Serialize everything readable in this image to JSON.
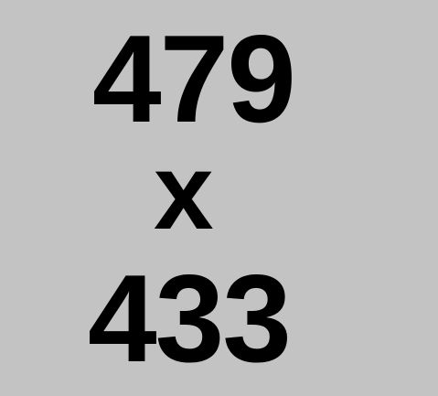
{
  "lines": {
    "width": "479",
    "separator": "x",
    "height": "433"
  },
  "colors": {
    "background": "#c3c3c3",
    "text": "#000000"
  }
}
